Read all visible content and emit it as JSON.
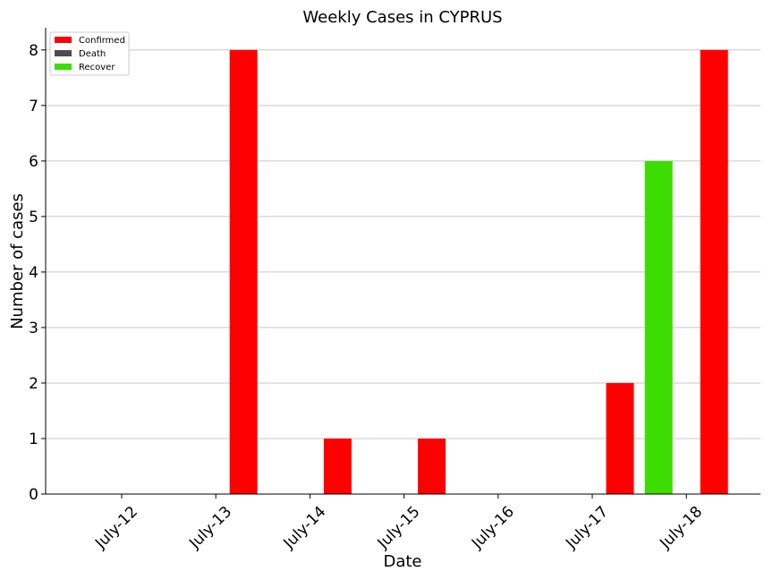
{
  "chart_data": {
    "type": "bar",
    "title": "Weekly Cases in CYPRUS",
    "xlabel": "Date",
    "ylabel": "Number of cases",
    "categories": [
      "July-12",
      "July-13",
      "July-14",
      "July-15",
      "July-16",
      "July-17",
      "July-18"
    ],
    "series": [
      {
        "name": "Recover",
        "color": "#3ddc03",
        "values": [
          0,
          0,
          0,
          0,
          0,
          0,
          6
        ]
      },
      {
        "name": "Death",
        "color": "#4d4d4d",
        "values": [
          0,
          0,
          0,
          0,
          0,
          0,
          0
        ]
      },
      {
        "name": "Confirmed",
        "color": "#ff0000",
        "values": [
          0,
          8,
          1,
          1,
          0,
          2,
          8
        ]
      }
    ],
    "legend_order": [
      "Confirmed",
      "Death",
      "Recover"
    ],
    "yticks": [
      0,
      1,
      2,
      3,
      4,
      5,
      6,
      7,
      8
    ],
    "ylim": [
      0,
      8.4
    ],
    "grid": "horizontal",
    "legend_position": "top-left"
  }
}
